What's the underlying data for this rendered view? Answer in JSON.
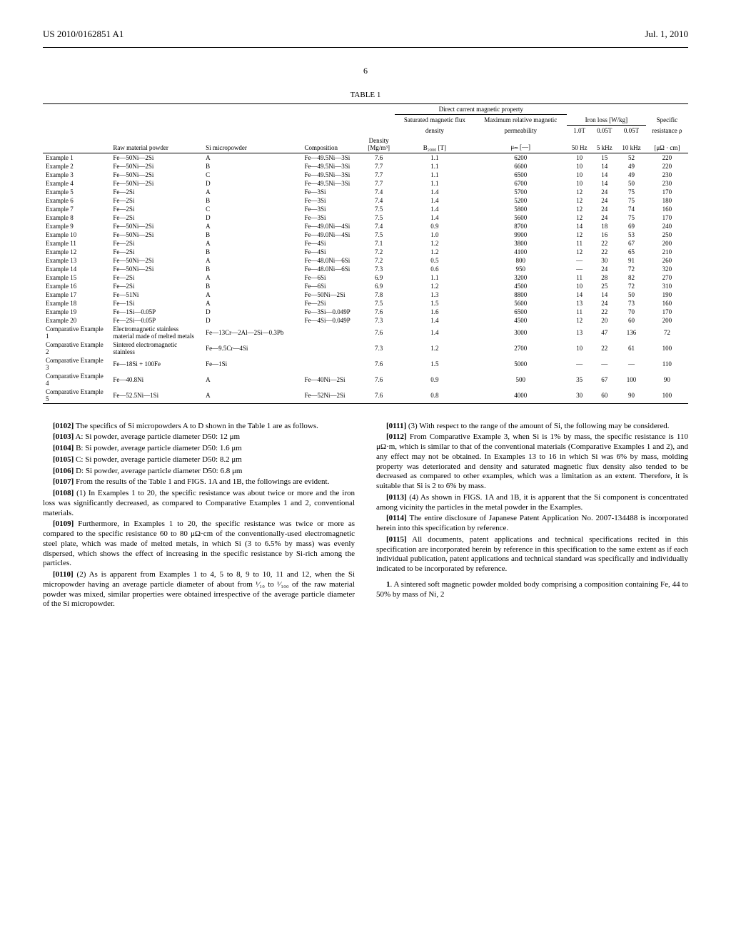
{
  "header": {
    "pubnum": "US 2010/0162851 A1",
    "date": "Jul. 1, 2010",
    "pagenum": "6"
  },
  "table": {
    "caption": "TABLE 1",
    "group_header": "Direct current magnetic property",
    "iron_loss_header": "Iron loss [W/kg]",
    "cols": {
      "raw": "Raw material powder",
      "si": "Si micropowder",
      "comp": "Composition",
      "density_top": "Density",
      "density_unit": "[Mg/m³]",
      "satflux_top": "Saturated magnetic flux",
      "satflux_mid": "density",
      "satflux_unit": "B₂₀₀₀ [T]",
      "perm_top": "Maximum relative magnetic",
      "perm_mid": "permeability",
      "perm_unit": "μₘ [—]",
      "il1_top": "1.0T",
      "il1_bot": "50 Hz",
      "il2_top": "0.05T",
      "il2_bot": "5 kHz",
      "il3_top": "0.05T",
      "il3_bot": "10 kHz",
      "res_top": "Specific",
      "res_mid": "resistance ρ",
      "res_unit": "[μΩ · cm]"
    },
    "rows": [
      {
        "label": "Example 1",
        "raw": "Fe—50Ni—2Si",
        "si": "A",
        "comp": "Fe—49.5Ni—3Si",
        "d": "7.6",
        "b": "1.1",
        "mu": "6200",
        "i1": "10",
        "i2": "15",
        "i3": "52",
        "r": "220"
      },
      {
        "label": "Example 2",
        "raw": "Fe—50Ni—2Si",
        "si": "B",
        "comp": "Fe—49.5Ni—3Si",
        "d": "7.7",
        "b": "1.1",
        "mu": "6600",
        "i1": "10",
        "i2": "14",
        "i3": "49",
        "r": "220"
      },
      {
        "label": "Example 3",
        "raw": "Fe—50Ni—2Si",
        "si": "C",
        "comp": "Fe—49.5Ni—3Si",
        "d": "7.7",
        "b": "1.1",
        "mu": "6500",
        "i1": "10",
        "i2": "14",
        "i3": "49",
        "r": "230"
      },
      {
        "label": "Example 4",
        "raw": "Fe—50Ni—2Si",
        "si": "D",
        "comp": "Fe—49.5Ni—3Si",
        "d": "7.7",
        "b": "1.1",
        "mu": "6700",
        "i1": "10",
        "i2": "14",
        "i3": "50",
        "r": "230"
      },
      {
        "label": "Example 5",
        "raw": "Fe—2Si",
        "si": "A",
        "comp": "Fe—3Si",
        "d": "7.4",
        "b": "1.4",
        "mu": "5700",
        "i1": "12",
        "i2": "24",
        "i3": "75",
        "r": "170"
      },
      {
        "label": "Example 6",
        "raw": "Fe—2Si",
        "si": "B",
        "comp": "Fe—3Si",
        "d": "7.4",
        "b": "1.4",
        "mu": "5200",
        "i1": "12",
        "i2": "24",
        "i3": "75",
        "r": "180"
      },
      {
        "label": "Example 7",
        "raw": "Fe—2Si",
        "si": "C",
        "comp": "Fe—3Si",
        "d": "7.5",
        "b": "1.4",
        "mu": "5800",
        "i1": "12",
        "i2": "24",
        "i3": "74",
        "r": "160"
      },
      {
        "label": "Example 8",
        "raw": "Fe—2Si",
        "si": "D",
        "comp": "Fe—3Si",
        "d": "7.5",
        "b": "1.4",
        "mu": "5600",
        "i1": "12",
        "i2": "24",
        "i3": "75",
        "r": "170"
      },
      {
        "label": "Example 9",
        "raw": "Fe—50Ni—2Si",
        "si": "A",
        "comp": "Fe—49.0Ni—4Si",
        "d": "7.4",
        "b": "0.9",
        "mu": "8700",
        "i1": "14",
        "i2": "18",
        "i3": "69",
        "r": "240"
      },
      {
        "label": "Example 10",
        "raw": "Fe—50Ni—2Si",
        "si": "B",
        "comp": "Fe—49.0Ni—4Si",
        "d": "7.5",
        "b": "1.0",
        "mu": "9900",
        "i1": "12",
        "i2": "16",
        "i3": "53",
        "r": "250"
      },
      {
        "label": "Example 11",
        "raw": "Fe—2Si",
        "si": "A",
        "comp": "Fe—4Si",
        "d": "7.1",
        "b": "1.2",
        "mu": "3800",
        "i1": "11",
        "i2": "22",
        "i3": "67",
        "r": "200"
      },
      {
        "label": "Example 12",
        "raw": "Fe—2Si",
        "si": "B",
        "comp": "Fe—4Si",
        "d": "7.2",
        "b": "1.2",
        "mu": "4100",
        "i1": "12",
        "i2": "22",
        "i3": "65",
        "r": "210"
      },
      {
        "label": "Example 13",
        "raw": "Fe—50Ni—2Si",
        "si": "A",
        "comp": "Fe—48.0Ni—6Si",
        "d": "7.2",
        "b": "0.5",
        "mu": "800",
        "i1": "—",
        "i2": "30",
        "i3": "91",
        "r": "260"
      },
      {
        "label": "Example 14",
        "raw": "Fe—50Ni—2Si",
        "si": "B",
        "comp": "Fe—48.0Ni—6Si",
        "d": "7.3",
        "b": "0.6",
        "mu": "950",
        "i1": "—",
        "i2": "24",
        "i3": "72",
        "r": "320"
      },
      {
        "label": "Example 15",
        "raw": "Fe—2Si",
        "si": "A",
        "comp": "Fe—6Si",
        "d": "6.9",
        "b": "1.1",
        "mu": "3200",
        "i1": "11",
        "i2": "28",
        "i3": "82",
        "r": "270"
      },
      {
        "label": "Example 16",
        "raw": "Fe—2Si",
        "si": "B",
        "comp": "Fe—6Si",
        "d": "6.9",
        "b": "1.2",
        "mu": "4500",
        "i1": "10",
        "i2": "25",
        "i3": "72",
        "r": "310"
      },
      {
        "label": "Example 17",
        "raw": "Fe—51Ni",
        "si": "A",
        "comp": "Fe—50Ni—2Si",
        "d": "7.8",
        "b": "1.3",
        "mu": "8800",
        "i1": "14",
        "i2": "14",
        "i3": "50",
        "r": "190"
      },
      {
        "label": "Example 18",
        "raw": "Fe—1Si",
        "si": "A",
        "comp": "Fe—2Si",
        "d": "7.5",
        "b": "1.5",
        "mu": "5600",
        "i1": "13",
        "i2": "24",
        "i3": "73",
        "r": "160"
      },
      {
        "label": "Example 19",
        "raw": "Fe—1Si—0.05P",
        "si": "D",
        "comp": "Fe—3Si—0.049P",
        "d": "7.6",
        "b": "1.6",
        "mu": "6500",
        "i1": "11",
        "i2": "22",
        "i3": "70",
        "r": "170"
      },
      {
        "label": "Example 20",
        "raw": "Fe—2Si—0.05P",
        "si": "D",
        "comp": "Fe—4Si—0.049P",
        "d": "7.3",
        "b": "1.4",
        "mu": "4500",
        "i1": "12",
        "i2": "20",
        "i3": "60",
        "r": "200"
      },
      {
        "label": "Comparative Example 1",
        "raw": "Electromagnetic stainless material made of melted metals",
        "si": "Fe—13Cr—2Al—2Si—0.3Pb",
        "comp": "",
        "d": "7.6",
        "b": "1.4",
        "mu": "3000",
        "i1": "13",
        "i2": "47",
        "i3": "136",
        "r": "72"
      },
      {
        "label": "Comparative Example 2",
        "raw": "Sintered electromagnetic stainless",
        "si": "Fe—9.5Cr—4Si",
        "comp": "",
        "d": "7.3",
        "b": "1.2",
        "mu": "2700",
        "i1": "10",
        "i2": "22",
        "i3": "61",
        "r": "100"
      },
      {
        "label": "Comparative Example 3",
        "raw": "Fe—18Si + 100Fe",
        "si": "Fe—1Si",
        "comp": "",
        "d": "7.6",
        "b": "1.5",
        "mu": "5000",
        "i1": "—",
        "i2": "—",
        "i3": "—",
        "r": "110"
      },
      {
        "label": "Comparative Example 4",
        "raw": "Fe—40.8Ni",
        "si": "A",
        "comp": "Fe—40Ni—2Si",
        "d": "7.6",
        "b": "0.9",
        "mu": "500",
        "i1": "35",
        "i2": "67",
        "i3": "100",
        "r": "90"
      },
      {
        "label": "Comparative Example 5",
        "raw": "Fe—52.5Ni—1Si",
        "si": "A",
        "comp": "Fe—52Ni—2Si",
        "d": "7.6",
        "b": "0.8",
        "mu": "4000",
        "i1": "30",
        "i2": "60",
        "i3": "90",
        "r": "100"
      }
    ]
  },
  "left_col": {
    "p102": {
      "num": "[0102]",
      "text": "The specifics of Si micropowders A to D shown in the Table 1 are as follows."
    },
    "p103": {
      "num": "[0103]",
      "text": "A: Si powder, average particle diameter D50: 12 μm"
    },
    "p104": {
      "num": "[0104]",
      "text": "B: Si powder, average particle diameter D50: 1.6 μm"
    },
    "p105": {
      "num": "[0105]",
      "text": "C: Si powder, average particle diameter D50: 8.2 μm"
    },
    "p106": {
      "num": "[0106]",
      "text": "D: Si powder, average particle diameter D50: 6.8 μm"
    },
    "p107": {
      "num": "[0107]",
      "text": "From the results of the Table 1 and FIGS. 1A and 1B, the followings are evident."
    },
    "p108": {
      "num": "[0108]",
      "text": "(1) In Examples 1 to 20, the specific resistance was about twice or more and the iron loss was significantly decreased, as compared to Comparative Examples 1 and 2, conventional materials."
    },
    "p109": {
      "num": "[0109]",
      "text": "Furthermore, in Examples 1 to 20, the specific resistance was twice or more as compared to the specific resistance 60 to 80 μΩ·cm of the conventionally-used electromagnetic steel plate, which was made of melted metals, in which Si (3 to 6.5% by mass) was evenly dispersed, which shows the effect of increasing in the specific resistance by Si-rich among the particles."
    },
    "p110": {
      "num": "[0110]",
      "text": "(2) As is apparent from Examples 1 to 4, 5 to 8, 9 to 10, 11 and 12, when the Si micropowder having an average particle diameter of about from ¹⁄₁₀ to ¹⁄₁₀₀ of the raw material powder was mixed, similar properties were obtained irrespective of the average particle diameter of the Si micropowder."
    }
  },
  "right_col": {
    "p111": {
      "num": "[0111]",
      "text": "(3) With respect to the range of the amount of Si, the following may be considered."
    },
    "p112": {
      "num": "[0112]",
      "text": "From Comparative Example 3, when Si is 1% by mass, the specific resistance is 110 μΩ·m, which is similar to that of the conventional materials (Comparative Examples 1 and 2), and any effect may not be obtained. In Examples 13 to 16 in which Si was 6% by mass, molding property was deteriorated and density and saturated magnetic flux density also tended to be decreased as compared to other examples, which was a limitation as an extent. Therefore, it is suitable that Si is 2 to 6% by mass."
    },
    "p113": {
      "num": "[0113]",
      "text": "(4) As shown in FIGS. 1A and 1B, it is apparent that the Si component is concentrated among vicinity the particles in the metal powder in the Examples."
    },
    "p114": {
      "num": "[0114]",
      "text": "The entire disclosure of Japanese Patent Application No. 2007-134488 is incorporated herein into this specification by reference."
    },
    "p115": {
      "num": "[0115]",
      "text": "All documents, patent applications and technical specifications recited in this specification are incorporated herein by reference in this specification to the same extent as if each individual publication, patent applications and technical standard was specifically and individually indicated to be incorporated by reference."
    },
    "claim1": {
      "num": "1",
      "text": ". A sintered soft magnetic powder molded body comprising a composition containing Fe, 44 to 50% by mass of Ni, 2"
    }
  }
}
